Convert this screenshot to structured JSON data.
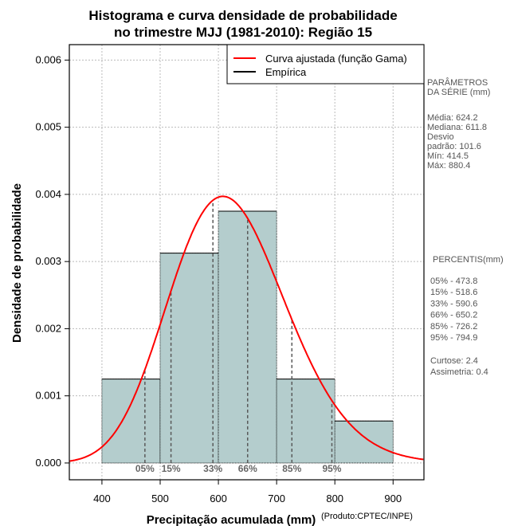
{
  "chart_data": {
    "type": "bar",
    "title": [
      "Histograma e curva densidade de probabilidade",
      "no trimestre MJJ (1981-2010): Região 15"
    ],
    "xlabel": "Precipitação acumulada (mm)",
    "xlabel_suffix": "(Produto:CPTEC/INPE)",
    "ylabel": "Densidade de probabilidade",
    "xlim": [
      344,
      953
    ],
    "ylim": [
      -0.00025,
      0.00623
    ],
    "xticks": [
      "400",
      "500",
      "600",
      "700",
      "800",
      "900"
    ],
    "yticks": [
      "0.000",
      "0.001",
      "0.002",
      "0.003",
      "0.004",
      "0.005",
      "0.006"
    ],
    "grid": true,
    "bins": [
      {
        "from": 400,
        "to": 500,
        "value": 0.00125
      },
      {
        "from": 500,
        "to": 600,
        "value": 0.003125
      },
      {
        "from": 600,
        "to": 700,
        "value": 0.00375
      },
      {
        "from": 700,
        "to": 800,
        "value": 0.00125
      },
      {
        "from": 800,
        "to": 900,
        "value": 0.000625
      }
    ],
    "gamma": {
      "mean": 624.2,
      "sd": 101.6
    },
    "legend": {
      "placement": "top-right",
      "items": [
        {
          "label": "Curva ajustada (função Gama)",
          "color": "#ff0000"
        },
        {
          "label": "Empírica",
          "color": "#000000"
        }
      ]
    },
    "percentiles": [
      {
        "label": "05%",
        "value": 473.8
      },
      {
        "label": "15%",
        "value": 518.6
      },
      {
        "label": "33%",
        "value": 590.6
      },
      {
        "label": "66%",
        "value": 650.2
      },
      {
        "label": "85%",
        "value": 726.2
      },
      {
        "label": "95%",
        "value": 794.9
      }
    ],
    "colors": {
      "bar": "#b4cdcd",
      "curve": "#ff0000",
      "percentile": "#595959"
    }
  },
  "side": {
    "params_title": [
      "PARÂMETROS",
      " DA SÉRIE (mm)"
    ],
    "params": [
      "Média:  624.2",
      "Mediana:  611.8",
      "Desvio",
      "padrão:  101.6",
      "Mín:  414.5",
      "Máx:  880.4"
    ],
    "perc_title": "PERCENTIS(mm)",
    "perc": [
      "05% -   473.8",
      "15% -   518.6",
      "33% -   590.6",
      "66% -   650.2",
      "85% -   726.2",
      "95% -   794.9"
    ],
    "stats": [
      "Curtose:  2.4",
      "Assimetria:  0.4"
    ]
  }
}
